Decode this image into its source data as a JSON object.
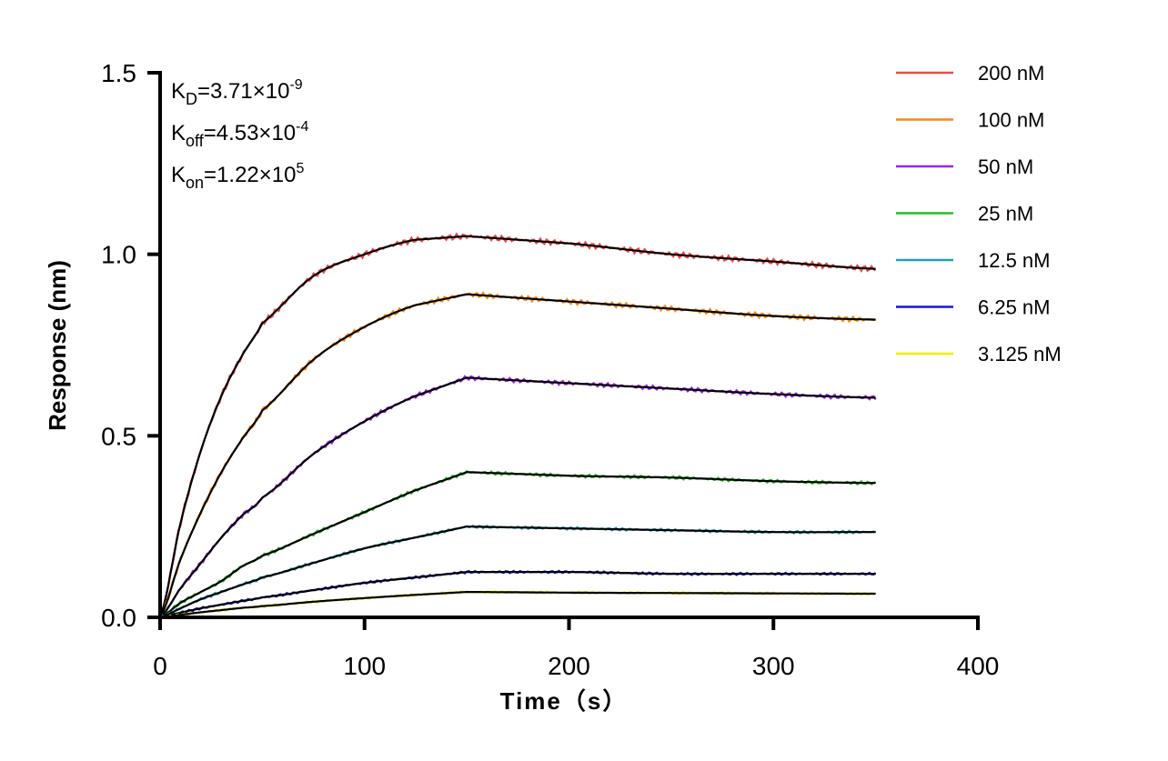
{
  "chart_data": {
    "type": "line",
    "xlabel": "Time（s）",
    "ylabel": "Response (nm)",
    "xlim": [
      0,
      400
    ],
    "ylim": [
      0,
      1.5
    ],
    "xticks": [
      0,
      100,
      200,
      300,
      400
    ],
    "xtick_labels": [
      "0",
      "100",
      "200",
      "300",
      "400"
    ],
    "yticks": [
      0,
      0.5,
      1.0,
      1.5
    ],
    "ytick_labels": [
      "0.0",
      "0.5",
      "1.0",
      "1.5"
    ],
    "grid": false,
    "legend_placement": "top-right",
    "fit_color": "#000000",
    "annotations": [
      {
        "symbol": "K",
        "sub": "D",
        "value": "=3.71×10",
        "exp": "-9"
      },
      {
        "symbol": "K",
        "sub": "off",
        "value": "=4.53×10",
        "exp": "-4"
      },
      {
        "symbol": "K",
        "sub": "on",
        "value": "=1.22×10",
        "exp": "5"
      }
    ],
    "x": [
      0,
      10,
      20,
      30,
      40,
      50,
      75,
      100,
      125,
      150,
      200,
      250,
      300,
      350
    ],
    "series": [
      {
        "name": "200 nM",
        "color": "#f04848",
        "values": [
          0,
          0.26,
          0.46,
          0.61,
          0.72,
          0.81,
          0.94,
          1.0,
          1.04,
          1.05,
          1.03,
          1.0,
          0.98,
          0.96
        ]
      },
      {
        "name": "100 nM",
        "color": "#f98a10",
        "values": [
          0,
          0.16,
          0.29,
          0.4,
          0.49,
          0.57,
          0.71,
          0.8,
          0.86,
          0.89,
          0.87,
          0.85,
          0.83,
          0.82
        ]
      },
      {
        "name": "50 nM",
        "color": "#a020f0",
        "values": [
          0,
          0.08,
          0.15,
          0.22,
          0.28,
          0.33,
          0.45,
          0.54,
          0.61,
          0.66,
          0.645,
          0.63,
          0.615,
          0.605
        ]
      },
      {
        "name": "25 nM",
        "color": "#22c022",
        "values": [
          0,
          0.04,
          0.07,
          0.1,
          0.14,
          0.17,
          0.23,
          0.29,
          0.35,
          0.4,
          0.39,
          0.385,
          0.375,
          0.37
        ]
      },
      {
        "name": "12.5 nM",
        "color": "#22a0b4",
        "values": [
          0,
          0.025,
          0.05,
          0.07,
          0.09,
          0.11,
          0.15,
          0.19,
          0.22,
          0.25,
          0.245,
          0.24,
          0.235,
          0.235
        ]
      },
      {
        "name": "6.25 nM",
        "color": "#1414e0",
        "values": [
          0,
          0.013,
          0.025,
          0.035,
          0.045,
          0.055,
          0.075,
          0.095,
          0.11,
          0.125,
          0.125,
          0.12,
          0.12,
          0.12
        ]
      },
      {
        "name": "3.125 nM",
        "color": "#f0f000",
        "values": [
          0,
          0.007,
          0.014,
          0.02,
          0.026,
          0.031,
          0.043,
          0.053,
          0.062,
          0.07,
          0.068,
          0.067,
          0.066,
          0.065
        ]
      }
    ]
  }
}
